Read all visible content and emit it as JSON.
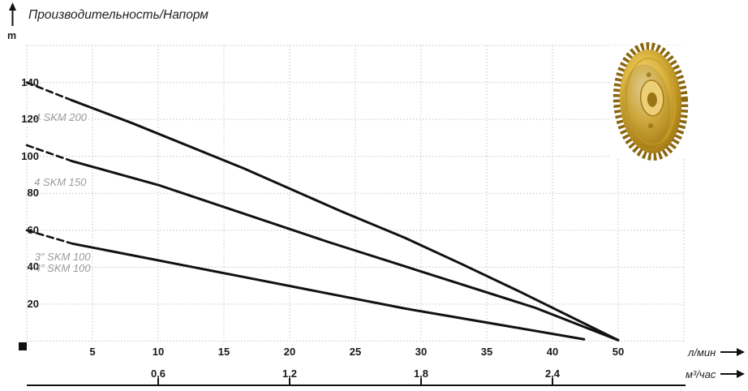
{
  "title": "Производительность/Напорм",
  "colors": {
    "curve": "#111111",
    "grid": "#c3c3c3",
    "series_label": "#9b9b9b",
    "text": "#1a1a1a",
    "gold_light": "#f7e7ae",
    "gold_mid": "#dfb945",
    "gold_dark": "#8f6a12"
  },
  "chart_data": {
    "type": "line",
    "title": "Производительность/Напорм",
    "ylabel": "m",
    "xlabel_primary": "л/мин",
    "xlabel_secondary": "м³/час",
    "ylim": [
      0,
      160
    ],
    "xlim": [
      0,
      55
    ],
    "grid": "dotted",
    "y_ticks": [
      20,
      40,
      60,
      80,
      100,
      120,
      140
    ],
    "x_ticks_primary": [
      5,
      10,
      15,
      20,
      25,
      30,
      35,
      40,
      50
    ],
    "x_ticks_secondary": [
      {
        "label": "0,6",
        "lmin": 10
      },
      {
        "label": "1,2",
        "lmin": 20
      },
      {
        "label": "1,8",
        "lmin": 30
      },
      {
        "label": "2,4",
        "lmin": 40
      }
    ],
    "series": [
      {
        "name": "4 SKM 200",
        "dashed": [
          [
            0,
            140
          ],
          [
            3.4,
            130.4
          ]
        ],
        "solid": [
          [
            3.4,
            130.4
          ],
          [
            8,
            118
          ],
          [
            16.5,
            93.5
          ],
          [
            24,
            70
          ],
          [
            28.8,
            55.8
          ],
          [
            33,
            42
          ],
          [
            37.5,
            26.8
          ],
          [
            50,
            0.5
          ]
        ],
        "label": {
          "lines": [
            "4 SKM 200"
          ],
          "x": 0.6,
          "y": 124
        }
      },
      {
        "name": "4 SKM 150",
        "dashed": [
          [
            0,
            106
          ],
          [
            3.4,
            97.5
          ]
        ],
        "solid": [
          [
            3.4,
            97.5
          ],
          [
            10,
            84.5
          ],
          [
            16.5,
            69
          ],
          [
            23,
            53.5
          ],
          [
            28.8,
            40.4
          ],
          [
            38.7,
            18
          ],
          [
            50,
            0.5
          ]
        ],
        "label": {
          "lines": [
            "4 SKM 150"
          ],
          "x": 0.56,
          "y": 89
        }
      },
      {
        "name": "3\"/4\" SKM 100",
        "dashed": [
          [
            0,
            60
          ],
          [
            3.5,
            52.7
          ]
        ],
        "solid": [
          [
            3.5,
            52.7
          ],
          [
            16.5,
            34.7
          ],
          [
            28.8,
            17.6
          ],
          [
            44.8,
            1
          ]
        ],
        "label": {
          "lines": [
            "3″ SKM 100",
            "4″ SKM 100"
          ],
          "x": 0.6,
          "y": 48.5
        }
      }
    ]
  }
}
